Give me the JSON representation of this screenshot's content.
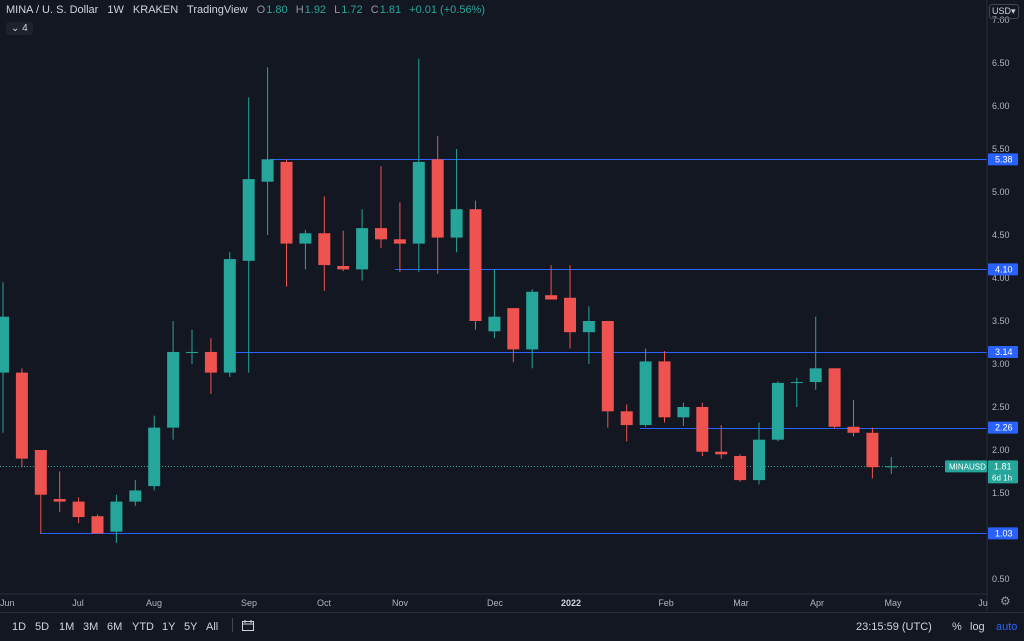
{
  "legend": {
    "symbol": "MINA / U. S. Dollar",
    "interval": "1W",
    "exchange": "KRAKEN",
    "source": "TradingView",
    "o_label": "O",
    "o_value": "1.80",
    "h_label": "H",
    "h_value": "1.92",
    "l_label": "L",
    "l_value": "1.72",
    "c_label": "C",
    "c_value": "1.81",
    "change": "+0.01 (+0.56%)",
    "collapse_label": "4",
    "collapse_icon": "chevron-down-icon"
  },
  "currency": "USD",
  "price_axis": [
    "7.00",
    "6.50",
    "6.00",
    "5.50",
    "5.00",
    "4.50",
    "4.00",
    "3.50",
    "3.00",
    "2.50",
    "2.00",
    "1.50",
    "1.00",
    "0.50"
  ],
  "time_axis": [
    "Jun",
    "Jul",
    "Aug",
    "Sep",
    "Oct",
    "Nov",
    "Dec",
    "2022",
    "Feb",
    "Mar",
    "Apr",
    "May",
    "Ju"
  ],
  "level_labels": [
    "5.38",
    "4.10",
    "3.14",
    "2.26",
    "1.03"
  ],
  "last_price": {
    "symbol": "MINAUSD",
    "value": "1.81",
    "countdown": "6d 1h"
  },
  "timeframes": [
    "1D",
    "5D",
    "1M",
    "3M",
    "6M",
    "YTD",
    "1Y",
    "5Y",
    "All"
  ],
  "clock": "23:15:59 (UTC)",
  "toggles": {
    "percent": "%",
    "log": "log",
    "auto": "auto"
  },
  "colors": {
    "up": "#26a69a",
    "down": "#ef5350",
    "level": "#2962ff",
    "bg": "#131722"
  },
  "chart_data": {
    "type": "candlestick",
    "title": "MINA / U. S. Dollar",
    "interval": "1W",
    "ylim": [
      0.3,
      7.1
    ],
    "horizontal_levels": [
      5.38,
      4.1,
      3.14,
      2.26,
      1.03
    ],
    "candles": [
      {
        "o": 2.9,
        "h": 3.95,
        "l": 2.2,
        "c": 3.55
      },
      {
        "o": 2.9,
        "h": 2.95,
        "l": 1.8,
        "c": 1.9
      },
      {
        "o": 2.0,
        "h": 2.0,
        "l": 1.03,
        "c": 1.48
      },
      {
        "o": 1.43,
        "h": 1.75,
        "l": 1.28,
        "c": 1.4
      },
      {
        "o": 1.4,
        "h": 1.45,
        "l": 1.15,
        "c": 1.22
      },
      {
        "o": 1.23,
        "h": 1.25,
        "l": 1.03,
        "c": 1.03
      },
      {
        "o": 1.05,
        "h": 1.48,
        "l": 0.92,
        "c": 1.4
      },
      {
        "o": 1.4,
        "h": 1.65,
        "l": 1.35,
        "c": 1.53
      },
      {
        "o": 1.58,
        "h": 2.4,
        "l": 1.53,
        "c": 2.26
      },
      {
        "o": 2.26,
        "h": 3.5,
        "l": 2.12,
        "c": 3.14
      },
      {
        "o": 3.14,
        "h": 3.4,
        "l": 3.0,
        "c": 3.14
      },
      {
        "o": 3.14,
        "h": 3.3,
        "l": 2.65,
        "c": 2.9
      },
      {
        "o": 2.9,
        "h": 4.3,
        "l": 2.85,
        "c": 4.22
      },
      {
        "o": 4.2,
        "h": 6.1,
        "l": 2.9,
        "c": 5.15
      },
      {
        "o": 5.12,
        "h": 6.45,
        "l": 4.5,
        "c": 5.38
      },
      {
        "o": 5.35,
        "h": 5.38,
        "l": 3.9,
        "c": 4.4
      },
      {
        "o": 4.4,
        "h": 4.56,
        "l": 4.1,
        "c": 4.52
      },
      {
        "o": 4.52,
        "h": 4.95,
        "l": 3.85,
        "c": 4.15
      },
      {
        "o": 4.14,
        "h": 4.55,
        "l": 4.08,
        "c": 4.1
      },
      {
        "o": 4.1,
        "h": 4.8,
        "l": 3.97,
        "c": 4.58
      },
      {
        "o": 4.58,
        "h": 5.3,
        "l": 4.35,
        "c": 4.45
      },
      {
        "o": 4.45,
        "h": 4.88,
        "l": 4.07,
        "c": 4.4
      },
      {
        "o": 4.4,
        "h": 6.55,
        "l": 4.07,
        "c": 5.35
      },
      {
        "o": 5.38,
        "h": 5.65,
        "l": 4.05,
        "c": 4.47
      },
      {
        "o": 4.47,
        "h": 5.5,
        "l": 4.3,
        "c": 4.8
      },
      {
        "o": 4.8,
        "h": 4.9,
        "l": 3.4,
        "c": 3.5
      },
      {
        "o": 3.38,
        "h": 4.1,
        "l": 3.3,
        "c": 3.55
      },
      {
        "o": 3.65,
        "h": 3.65,
        "l": 3.02,
        "c": 3.17
      },
      {
        "o": 3.17,
        "h": 3.87,
        "l": 2.95,
        "c": 3.84
      },
      {
        "o": 3.8,
        "h": 4.15,
        "l": 3.77,
        "c": 3.75
      },
      {
        "o": 3.77,
        "h": 4.15,
        "l": 3.18,
        "c": 3.37
      },
      {
        "o": 3.37,
        "h": 3.67,
        "l": 3.0,
        "c": 3.5
      },
      {
        "o": 3.5,
        "h": 3.5,
        "l": 2.26,
        "c": 2.45
      },
      {
        "o": 2.45,
        "h": 2.53,
        "l": 2.1,
        "c": 2.29
      },
      {
        "o": 2.29,
        "h": 3.18,
        "l": 2.27,
        "c": 3.03
      },
      {
        "o": 3.03,
        "h": 3.15,
        "l": 2.32,
        "c": 2.38
      },
      {
        "o": 2.38,
        "h": 2.55,
        "l": 2.28,
        "c": 2.5
      },
      {
        "o": 2.5,
        "h": 2.55,
        "l": 1.93,
        "c": 1.98
      },
      {
        "o": 1.98,
        "h": 2.29,
        "l": 1.9,
        "c": 1.95
      },
      {
        "o": 1.93,
        "h": 1.95,
        "l": 1.63,
        "c": 1.65
      },
      {
        "o": 1.65,
        "h": 2.32,
        "l": 1.6,
        "c": 2.12
      },
      {
        "o": 2.12,
        "h": 2.8,
        "l": 2.1,
        "c": 2.78
      },
      {
        "o": 2.78,
        "h": 2.84,
        "l": 2.5,
        "c": 2.79
      },
      {
        "o": 2.79,
        "h": 3.55,
        "l": 2.7,
        "c": 2.95
      },
      {
        "o": 2.95,
        "h": 2.95,
        "l": 2.25,
        "c": 2.27
      },
      {
        "o": 2.27,
        "h": 2.58,
        "l": 2.16,
        "c": 2.2
      },
      {
        "o": 2.2,
        "h": 2.26,
        "l": 1.67,
        "c": 1.8
      },
      {
        "o": 1.8,
        "h": 1.92,
        "l": 1.72,
        "c": 1.81
      }
    ]
  }
}
